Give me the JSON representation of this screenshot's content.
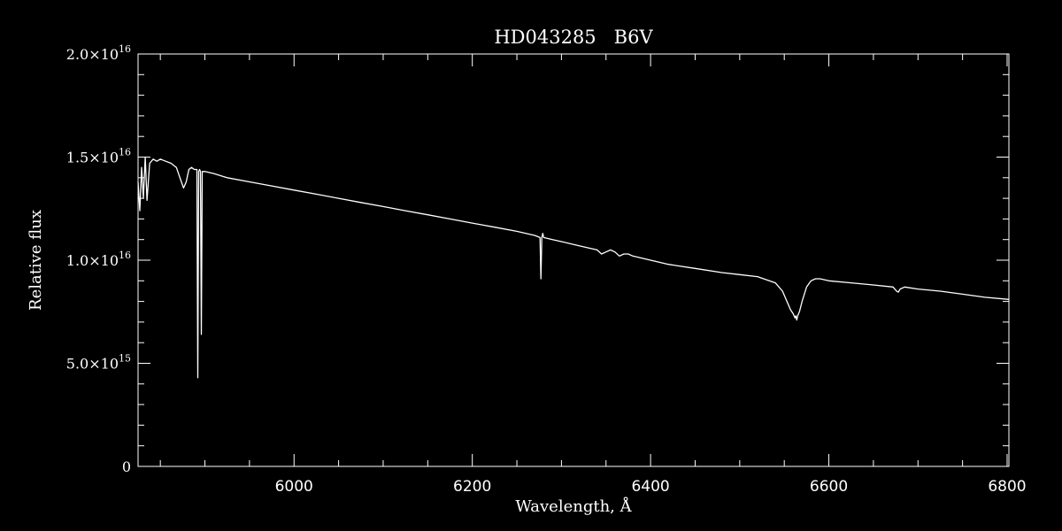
{
  "chart_data": {
    "type": "line",
    "title": "HD043285   B6V",
    "xlabel": "Wavelength, Å",
    "ylabel": "Relative flux",
    "xlim": [
      5825,
      6802
    ],
    "ylim": [
      0,
      2e+16
    ],
    "grid": false,
    "x_ticks": [
      {
        "value": 6000,
        "label": "6000"
      },
      {
        "value": 6200,
        "label": "6200"
      },
      {
        "value": 6400,
        "label": "6400"
      },
      {
        "value": 6600,
        "label": "6600"
      },
      {
        "value": 6800,
        "label": "6800"
      }
    ],
    "y_ticks": [
      {
        "value": 0,
        "mantissa": "0",
        "exponent": ""
      },
      {
        "value": 5000000000000000.0,
        "mantissa": "5.0×10",
        "exponent": "15"
      },
      {
        "value": 1e+16,
        "mantissa": "1.0×10",
        "exponent": "16"
      },
      {
        "value": 1.5e+16,
        "mantissa": "1.5×10",
        "exponent": "16"
      },
      {
        "value": 2e+16,
        "mantissa": "2.0×10",
        "exponent": "16"
      }
    ],
    "series": [
      {
        "color": "#ffffff",
        "x": [
          5825,
          5827,
          5829,
          5831,
          5833,
          5835,
          5838,
          5842,
          5846,
          5850,
          5856,
          5862,
          5868,
          5872,
          5876,
          5879,
          5882,
          5885,
          5888,
          5891,
          5892,
          5893,
          5894,
          5895,
          5896,
          5897,
          5898,
          5899,
          5900,
          5910,
          5925,
          5950,
          5975,
          6000,
          6025,
          6050,
          6075,
          6100,
          6125,
          6150,
          6175,
          6200,
          6225,
          6250,
          6270,
          6276,
          6277,
          6278,
          6279,
          6280,
          6290,
          6300,
          6320,
          6340,
          6345,
          6350,
          6355,
          6360,
          6365,
          6370,
          6375,
          6380,
          6400,
          6420,
          6450,
          6480,
          6500,
          6520,
          6540,
          6548,
          6553,
          6557,
          6560,
          6562,
          6563,
          6564,
          6565,
          6567,
          6570,
          6575,
          6580,
          6585,
          6590,
          6600,
          6625,
          6650,
          6672,
          6676,
          6678,
          6680,
          6685,
          6700,
          6725,
          6750,
          6775,
          6802
        ],
        "y": [
          1.38e+16,
          1.24e+16,
          1.45e+16,
          1.3e+16,
          1.5e+16,
          1.29e+16,
          1.47e+16,
          1.49e+16,
          1.48e+16,
          1.49e+16,
          1.48e+16,
          1.47e+16,
          1.45e+16,
          1.4e+16,
          1.35e+16,
          1.38e+16,
          1.44e+16,
          1.45e+16,
          1.44e+16,
          1.44e+16,
          4300000000000000.0,
          1.43e+16,
          1.44e+16,
          1.43e+16,
          6400000000000000.0,
          1.43e+16,
          1.43e+16,
          1.43e+16,
          1.43e+16,
          1.42e+16,
          1.4e+16,
          1.38e+16,
          1.36e+16,
          1.34e+16,
          1.32e+16,
          1.3e+16,
          1.28e+16,
          1.26e+16,
          1.24e+16,
          1.22e+16,
          1.2e+16,
          1.18e+16,
          1.16e+16,
          1.14e+16,
          1.12e+16,
          1.11e+16,
          9100000000000000.0,
          1.11e+16,
          1.13e+16,
          1.11e+16,
          1.1e+16,
          1.09e+16,
          1.07e+16,
          1.05e+16,
          1.03e+16,
          1.04e+16,
          1.05e+16,
          1.04e+16,
          1.02e+16,
          1.03e+16,
          1.03e+16,
          1.02e+16,
          1e+16,
          9800000000000000.0,
          9600000000000000.0,
          9400000000000000.0,
          9300000000000000.0,
          9200000000000000.0,
          8900000000000000.0,
          8500000000000000.0,
          8000000000000000.0,
          7600000000000000.0,
          7400000000000000.0,
          7200000000000000.0,
          7300000000000000.0,
          7100000000000000.0,
          7300000000000000.0,
          7500000000000000.0,
          8000000000000000.0,
          8700000000000000.0,
          9000000000000000.0,
          9100000000000000.0,
          9100000000000000.0,
          9000000000000000.0,
          8900000000000000.0,
          8800000000000000.0,
          8700000000000000.0,
          8500000000000000.0,
          8450000000000000.0,
          8600000000000000.0,
          8700000000000000.0,
          8600000000000000.0,
          8500000000000000.0,
          8350000000000000.0,
          8200000000000000.0,
          8100000000000000.0
        ]
      }
    ]
  }
}
